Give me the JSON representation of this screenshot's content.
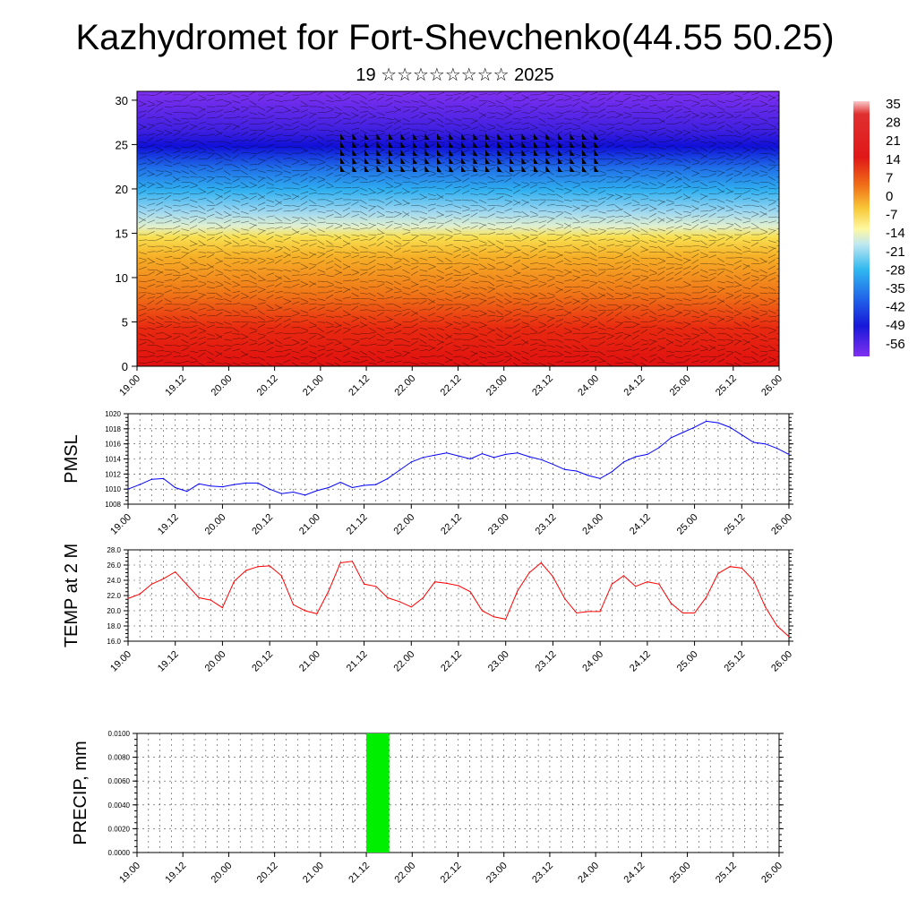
{
  "title": "Kazhydromet for Fort-Shevchenko(44.55 50.25)",
  "subtitle": "19 ☆☆☆☆☆☆☆☆ 2025",
  "chart_data": [
    {
      "type": "heatmap",
      "x_ticks": [
        "19.00",
        "19.12",
        "20.00",
        "20.12",
        "21.00",
        "21.12",
        "22.00",
        "22.12",
        "23.00",
        "23.12",
        "24.00",
        "24.12",
        "25.00",
        "25.12",
        "26.00"
      ],
      "y_ticks": [
        "0",
        "5",
        "10",
        "15",
        "20",
        "25",
        "30"
      ],
      "ylim": [
        0,
        31
      ],
      "colorbar_labels": [
        "35",
        "28",
        "21",
        "14",
        "7",
        "0",
        "-7",
        "-14",
        "-21",
        "-28",
        "-35",
        "-42",
        "-49",
        "-56"
      ],
      "overlay": "wind barbs",
      "colors": {
        "warm": "#e01010",
        "mid": "#f8e050",
        "cool": "#30b0f0",
        "cold": "#1010d8",
        "top": "#8030f0"
      }
    },
    {
      "type": "line",
      "ylabel": "PMSL",
      "ylim": [
        1008,
        1020
      ],
      "y_ticks": [
        "1020",
        "1018",
        "1016",
        "1014",
        "1012",
        "1010",
        "1008"
      ],
      "x_ticks": [
        "19.00",
        "19.12",
        "20.00",
        "20.12",
        "21.00",
        "21.12",
        "22.00",
        "22.12",
        "23.00",
        "23.12",
        "24.00",
        "24.12",
        "25.00",
        "25.12",
        "26.00"
      ],
      "color": "#0000ff",
      "values": [
        1010.0,
        1010.6,
        1011.3,
        1011.4,
        1010.2,
        1009.7,
        1010.7,
        1010.4,
        1010.3,
        1010.6,
        1010.8,
        1010.8,
        1010.0,
        1009.4,
        1009.6,
        1009.2,
        1009.8,
        1010.2,
        1010.9,
        1010.2,
        1010.5,
        1010.6,
        1011.4,
        1012.5,
        1013.6,
        1014.2,
        1014.5,
        1014.8,
        1014.4,
        1014.0,
        1014.7,
        1014.2,
        1014.6,
        1014.8,
        1014.3,
        1013.9,
        1013.3,
        1012.6,
        1012.4,
        1011.8,
        1011.4,
        1012.3,
        1013.6,
        1014.3,
        1014.6,
        1015.5,
        1016.8,
        1017.5,
        1018.2,
        1019.0,
        1018.8,
        1018.2,
        1017.2,
        1016.2,
        1016.0,
        1015.4,
        1014.6
      ]
    },
    {
      "type": "line",
      "ylabel": "TEMP at 2 M",
      "ylim": [
        16,
        28
      ],
      "y_ticks": [
        "28.0",
        "26.0",
        "24.0",
        "22.0",
        "20.0",
        "18.0",
        "16.0"
      ],
      "x_ticks": [
        "19.00",
        "19.12",
        "20.00",
        "20.12",
        "21.00",
        "21.12",
        "22.00",
        "22.12",
        "23.00",
        "23.12",
        "24.00",
        "24.12",
        "25.00",
        "25.12",
        "26.00"
      ],
      "color": "#ff0000",
      "values": [
        21.6,
        22.2,
        23.5,
        24.2,
        25.1,
        23.4,
        21.7,
        21.4,
        20.4,
        23.9,
        25.3,
        25.8,
        25.9,
        24.6,
        20.8,
        20.0,
        19.6,
        22.6,
        26.3,
        26.5,
        23.5,
        23.2,
        21.7,
        21.2,
        20.5,
        21.7,
        23.8,
        23.6,
        23.3,
        22.5,
        20.0,
        19.2,
        18.9,
        22.6,
        25.0,
        26.3,
        24.5,
        21.6,
        19.7,
        19.9,
        19.9,
        23.5,
        24.6,
        23.2,
        23.8,
        23.5,
        21.0,
        19.7,
        19.7,
        21.8,
        24.9,
        25.8,
        25.6,
        24.0,
        20.5,
        18.0,
        16.6
      ]
    },
    {
      "type": "bar",
      "ylabel": "PRECIP, mm",
      "ylim": [
        0,
        0.01
      ],
      "y_ticks": [
        "0.0100",
        "0.0080",
        "0.0060",
        "0.0040",
        "0.0020",
        "0.0000"
      ],
      "x_ticks": [
        "19.00",
        "19.12",
        "20.00",
        "20.12",
        "21.00",
        "21.12",
        "22.00",
        "22.12",
        "23.00",
        "23.12",
        "24.00",
        "24.12",
        "25.00",
        "25.12",
        "26.00"
      ],
      "color": "#00ee00",
      "bars": [
        {
          "x_start": 20,
          "x_end": 22,
          "value": 0.01
        }
      ]
    }
  ]
}
